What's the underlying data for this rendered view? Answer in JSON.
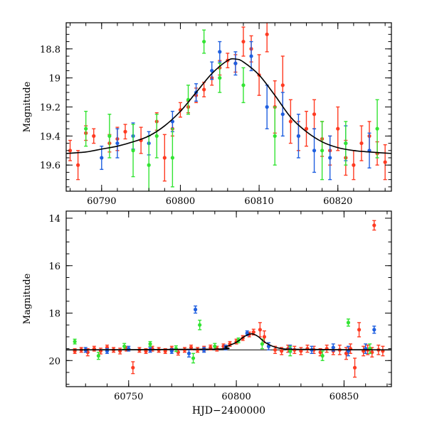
{
  "chart_data": [
    {
      "type": "scatter",
      "panel": "top",
      "title": "",
      "xlabel": "",
      "ylabel": "Magnitude",
      "xlim": [
        60785.5,
        60826.8
      ],
      "ylim": [
        19.78,
        18.62
      ],
      "y_inverted": true,
      "xticks": [
        60790,
        60800,
        60810,
        60820
      ],
      "xtick_labels": [
        "60790",
        "60800",
        "60810",
        "60820"
      ],
      "yticks": [
        18.8,
        19,
        19.2,
        19.4,
        19.6
      ],
      "ytick_labels": [
        "18.8",
        "19",
        "19.2",
        "19.4",
        "19.6"
      ],
      "grid": false,
      "legend": "none",
      "model_curve": {
        "color": "#000000",
        "x": [
          60785.5,
          60788,
          60790,
          60792,
          60794,
          60796,
          60798,
          60800,
          60802,
          60804,
          60806,
          60807,
          60808,
          60810,
          60812,
          60814,
          60816,
          60818,
          60820,
          60822,
          60824,
          60826.8
        ],
        "y": [
          19.52,
          19.51,
          19.49,
          19.47,
          19.44,
          19.4,
          19.33,
          19.23,
          19.1,
          18.97,
          18.88,
          18.87,
          18.89,
          18.98,
          19.12,
          19.27,
          19.37,
          19.44,
          19.48,
          19.5,
          19.51,
          19.52
        ]
      },
      "series": [
        {
          "color": "#ff3b22",
          "points": [
            {
              "x": 60786,
              "y": 19.5,
              "err": 0.07
            },
            {
              "x": 60787,
              "y": 19.6,
              "err": 0.1
            },
            {
              "x": 60788,
              "y": 19.38,
              "err": 0.05
            },
            {
              "x": 60789,
              "y": 19.4,
              "err": 0.05
            },
            {
              "x": 60791,
              "y": 19.45,
              "err": 0.06
            },
            {
              "x": 60792,
              "y": 19.42,
              "err": 0.08
            },
            {
              "x": 60793,
              "y": 19.37,
              "err": 0.05
            },
            {
              "x": 60795,
              "y": 19.43,
              "err": 0.09
            },
            {
              "x": 60797,
              "y": 19.3,
              "err": 0.06
            },
            {
              "x": 60798,
              "y": 19.55,
              "err": 0.16
            },
            {
              "x": 60799,
              "y": 19.35,
              "err": 0.05
            },
            {
              "x": 60800,
              "y": 19.22,
              "err": 0.05
            },
            {
              "x": 60801,
              "y": 19.2,
              "err": 0.04
            },
            {
              "x": 60802,
              "y": 19.12,
              "err": 0.05
            },
            {
              "x": 60803,
              "y": 19.08,
              "err": 0.05
            },
            {
              "x": 60804,
              "y": 19.0,
              "err": 0.05
            },
            {
              "x": 60805,
              "y": 18.93,
              "err": 0.05
            },
            {
              "x": 60806,
              "y": 18.88,
              "err": 0.05
            },
            {
              "x": 60807,
              "y": 18.9,
              "err": 0.06
            },
            {
              "x": 60808,
              "y": 18.75,
              "err": 0.1
            },
            {
              "x": 60809,
              "y": 18.8,
              "err": 0.09
            },
            {
              "x": 60810,
              "y": 18.98,
              "err": 0.14
            },
            {
              "x": 60811,
              "y": 18.7,
              "err": 0.12
            },
            {
              "x": 60812,
              "y": 19.2,
              "err": 0.18
            },
            {
              "x": 60813,
              "y": 19.05,
              "err": 0.2
            },
            {
              "x": 60814,
              "y": 19.3,
              "err": 0.15
            },
            {
              "x": 60815,
              "y": 19.4,
              "err": 0.1
            },
            {
              "x": 60816,
              "y": 19.35,
              "err": 0.12
            },
            {
              "x": 60817,
              "y": 19.25,
              "err": 0.1
            },
            {
              "x": 60818,
              "y": 19.42,
              "err": 0.12
            },
            {
              "x": 60819,
              "y": 19.5,
              "err": 0.1
            },
            {
              "x": 60820,
              "y": 19.35,
              "err": 0.15
            },
            {
              "x": 60821,
              "y": 19.55,
              "err": 0.12
            },
            {
              "x": 60822,
              "y": 19.6,
              "err": 0.1
            },
            {
              "x": 60823,
              "y": 19.45,
              "err": 0.12
            },
            {
              "x": 60824,
              "y": 19.4,
              "err": 0.1
            },
            {
              "x": 60825,
              "y": 19.52,
              "err": 0.08
            },
            {
              "x": 60826,
              "y": 19.58,
              "err": 0.12
            }
          ]
        },
        {
          "color": "#1f5fe0",
          "points": [
            {
              "x": 60790,
              "y": 19.55,
              "err": 0.08
            },
            {
              "x": 60792,
              "y": 19.45,
              "err": 0.1
            },
            {
              "x": 60794,
              "y": 19.4,
              "err": 0.09
            },
            {
              "x": 60796,
              "y": 19.45,
              "err": 0.08
            },
            {
              "x": 60799,
              "y": 19.3,
              "err": 0.07
            },
            {
              "x": 60802,
              "y": 19.1,
              "err": 0.06
            },
            {
              "x": 60804,
              "y": 18.95,
              "err": 0.06
            },
            {
              "x": 60805,
              "y": 18.82,
              "err": 0.07
            },
            {
              "x": 60807,
              "y": 18.9,
              "err": 0.08
            },
            {
              "x": 60809,
              "y": 18.85,
              "err": 0.1
            },
            {
              "x": 60811,
              "y": 19.2,
              "err": 0.15
            },
            {
              "x": 60813,
              "y": 19.25,
              "err": 0.15
            },
            {
              "x": 60815,
              "y": 19.4,
              "err": 0.15
            },
            {
              "x": 60817,
              "y": 19.5,
              "err": 0.15
            },
            {
              "x": 60819,
              "y": 19.55,
              "err": 0.15
            },
            {
              "x": 60821,
              "y": 19.45,
              "err": 0.12
            },
            {
              "x": 60824,
              "y": 19.5,
              "err": 0.12
            }
          ]
        },
        {
          "color": "#33e433",
          "points": [
            {
              "x": 60788,
              "y": 19.35,
              "err": 0.12
            },
            {
              "x": 60791,
              "y": 19.4,
              "err": 0.15
            },
            {
              "x": 60794,
              "y": 19.5,
              "err": 0.18
            },
            {
              "x": 60796,
              "y": 19.6,
              "err": 0.2
            },
            {
              "x": 60797,
              "y": 19.4,
              "err": 0.15
            },
            {
              "x": 60799,
              "y": 19.55,
              "err": 0.2
            },
            {
              "x": 60801,
              "y": 19.15,
              "err": 0.1
            },
            {
              "x": 60803,
              "y": 18.75,
              "err": 0.08
            },
            {
              "x": 60805,
              "y": 19.0,
              "err": 0.1
            },
            {
              "x": 60808,
              "y": 19.05,
              "err": 0.12
            },
            {
              "x": 60812,
              "y": 19.4,
              "err": 0.2
            },
            {
              "x": 60818,
              "y": 19.5,
              "err": 0.2
            },
            {
              "x": 60821,
              "y": 19.45,
              "err": 0.15
            },
            {
              "x": 60825,
              "y": 19.35,
              "err": 0.2
            }
          ]
        }
      ]
    },
    {
      "type": "scatter",
      "panel": "bottom",
      "title": "",
      "xlabel": "HJD−2400000",
      "ylabel": "Magnitude",
      "xlim": [
        60721,
        60872
      ],
      "ylim": [
        21.1,
        13.7
      ],
      "y_inverted": true,
      "xticks": [
        60750,
        60800,
        60850
      ],
      "xtick_labels": [
        "60750",
        "60800",
        "60850"
      ],
      "yticks": [
        14,
        16,
        18,
        20
      ],
      "ytick_labels": [
        "14",
        "16",
        "18",
        "20"
      ],
      "grid": false,
      "legend": "none",
      "baseline": {
        "y": 19.55,
        "color": "#000000"
      },
      "model_curve": {
        "color": "#000000",
        "x": [
          60721,
          60790,
          60795,
          60800,
          60804,
          60807,
          60810,
          60814,
          60820,
          60830,
          60872
        ],
        "y": [
          19.55,
          19.52,
          19.42,
          19.23,
          18.97,
          18.87,
          18.98,
          19.27,
          19.48,
          19.53,
          19.55
        ]
      },
      "series": [
        {
          "color": "#ff3b22",
          "points": [
            {
              "x": 60725,
              "y": 19.6,
              "err": 0.1
            },
            {
              "x": 60728,
              "y": 19.55,
              "err": 0.1
            },
            {
              "x": 60731,
              "y": 19.65,
              "err": 0.15
            },
            {
              "x": 60734,
              "y": 19.5,
              "err": 0.1
            },
            {
              "x": 60737,
              "y": 19.6,
              "err": 0.12
            },
            {
              "x": 60740,
              "y": 19.45,
              "err": 0.1
            },
            {
              "x": 60743,
              "y": 19.55,
              "err": 0.1
            },
            {
              "x": 60746,
              "y": 19.6,
              "err": 0.12
            },
            {
              "x": 60749,
              "y": 19.5,
              "err": 0.1
            },
            {
              "x": 60752,
              "y": 20.3,
              "err": 0.25
            },
            {
              "x": 60755,
              "y": 19.55,
              "err": 0.1
            },
            {
              "x": 60758,
              "y": 19.6,
              "err": 0.1
            },
            {
              "x": 60761,
              "y": 19.5,
              "err": 0.1
            },
            {
              "x": 60764,
              "y": 19.55,
              "err": 0.1
            },
            {
              "x": 60767,
              "y": 19.6,
              "err": 0.1
            },
            {
              "x": 60770,
              "y": 19.5,
              "err": 0.1
            },
            {
              "x": 60773,
              "y": 19.65,
              "err": 0.12
            },
            {
              "x": 60776,
              "y": 19.55,
              "err": 0.1
            },
            {
              "x": 60779,
              "y": 19.45,
              "err": 0.1
            },
            {
              "x": 60782,
              "y": 19.55,
              "err": 0.1
            },
            {
              "x": 60785,
              "y": 19.5,
              "err": 0.1
            },
            {
              "x": 60788,
              "y": 19.45,
              "err": 0.1
            },
            {
              "x": 60791,
              "y": 19.5,
              "err": 0.1
            },
            {
              "x": 60794,
              "y": 19.4,
              "err": 0.1
            },
            {
              "x": 60797,
              "y": 19.3,
              "err": 0.1
            },
            {
              "x": 60800,
              "y": 19.2,
              "err": 0.1
            },
            {
              "x": 60803,
              "y": 19.05,
              "err": 0.1
            },
            {
              "x": 60806,
              "y": 18.9,
              "err": 0.1
            },
            {
              "x": 60808,
              "y": 18.8,
              "err": 0.12
            },
            {
              "x": 60811,
              "y": 18.7,
              "err": 0.3
            },
            {
              "x": 60813,
              "y": 19.0,
              "err": 0.25
            },
            {
              "x": 60815,
              "y": 19.4,
              "err": 0.15
            },
            {
              "x": 60818,
              "y": 19.55,
              "err": 0.15
            },
            {
              "x": 60821,
              "y": 19.6,
              "err": 0.15
            },
            {
              "x": 60824,
              "y": 19.5,
              "err": 0.15
            },
            {
              "x": 60827,
              "y": 19.55,
              "err": 0.15
            },
            {
              "x": 60830,
              "y": 19.6,
              "err": 0.15
            },
            {
              "x": 60833,
              "y": 19.5,
              "err": 0.15
            },
            {
              "x": 60836,
              "y": 19.55,
              "err": 0.15
            },
            {
              "x": 60839,
              "y": 19.65,
              "err": 0.15
            },
            {
              "x": 60842,
              "y": 19.5,
              "err": 0.15
            },
            {
              "x": 60845,
              "y": 19.6,
              "err": 0.15
            },
            {
              "x": 60848,
              "y": 19.55,
              "err": 0.2
            },
            {
              "x": 60851,
              "y": 19.7,
              "err": 0.25
            },
            {
              "x": 60853,
              "y": 19.5,
              "err": 0.2
            },
            {
              "x": 60855,
              "y": 20.3,
              "err": 0.4
            },
            {
              "x": 60857,
              "y": 18.7,
              "err": 0.3
            },
            {
              "x": 60859,
              "y": 19.6,
              "err": 0.2
            },
            {
              "x": 60861,
              "y": 19.55,
              "err": 0.2
            },
            {
              "x": 60863,
              "y": 19.65,
              "err": 0.2
            },
            {
              "x": 60864,
              "y": 14.3,
              "err": 0.2
            },
            {
              "x": 60866,
              "y": 19.55,
              "err": 0.2
            },
            {
              "x": 60868,
              "y": 19.6,
              "err": 0.2
            }
          ]
        },
        {
          "color": "#1f5fe0",
          "points": [
            {
              "x": 60730,
              "y": 19.55,
              "err": 0.1
            },
            {
              "x": 60740,
              "y": 19.6,
              "err": 0.1
            },
            {
              "x": 60750,
              "y": 19.5,
              "err": 0.1
            },
            {
              "x": 60760,
              "y": 19.55,
              "err": 0.1
            },
            {
              "x": 60770,
              "y": 19.6,
              "err": 0.1
            },
            {
              "x": 60778,
              "y": 19.7,
              "err": 0.15
            },
            {
              "x": 60781,
              "y": 17.85,
              "err": 0.15
            },
            {
              "x": 60785,
              "y": 19.55,
              "err": 0.1
            },
            {
              "x": 60795,
              "y": 19.45,
              "err": 0.1
            },
            {
              "x": 60805,
              "y": 18.85,
              "err": 0.1
            },
            {
              "x": 60815,
              "y": 19.4,
              "err": 0.15
            },
            {
              "x": 60825,
              "y": 19.5,
              "err": 0.15
            },
            {
              "x": 60835,
              "y": 19.55,
              "err": 0.15
            },
            {
              "x": 60845,
              "y": 19.45,
              "err": 0.15
            },
            {
              "x": 60852,
              "y": 19.6,
              "err": 0.2
            },
            {
              "x": 60860,
              "y": 19.5,
              "err": 0.2
            },
            {
              "x": 60864,
              "y": 18.7,
              "err": 0.15
            }
          ]
        },
        {
          "color": "#33e433",
          "points": [
            {
              "x": 60725,
              "y": 19.2,
              "err": 0.1
            },
            {
              "x": 60736,
              "y": 19.8,
              "err": 0.15
            },
            {
              "x": 60748,
              "y": 19.4,
              "err": 0.12
            },
            {
              "x": 60760,
              "y": 19.3,
              "err": 0.1
            },
            {
              "x": 60772,
              "y": 19.5,
              "err": 0.12
            },
            {
              "x": 60780,
              "y": 19.9,
              "err": 0.2
            },
            {
              "x": 60783,
              "y": 18.5,
              "err": 0.2
            },
            {
              "x": 60790,
              "y": 19.4,
              "err": 0.12
            },
            {
              "x": 60801,
              "y": 19.15,
              "err": 0.1
            },
            {
              "x": 60812,
              "y": 19.3,
              "err": 0.2
            },
            {
              "x": 60825,
              "y": 19.6,
              "err": 0.2
            },
            {
              "x": 60840,
              "y": 19.8,
              "err": 0.2
            },
            {
              "x": 60852,
              "y": 18.4,
              "err": 0.15
            },
            {
              "x": 60862,
              "y": 19.5,
              "err": 0.2
            }
          ]
        }
      ]
    }
  ]
}
